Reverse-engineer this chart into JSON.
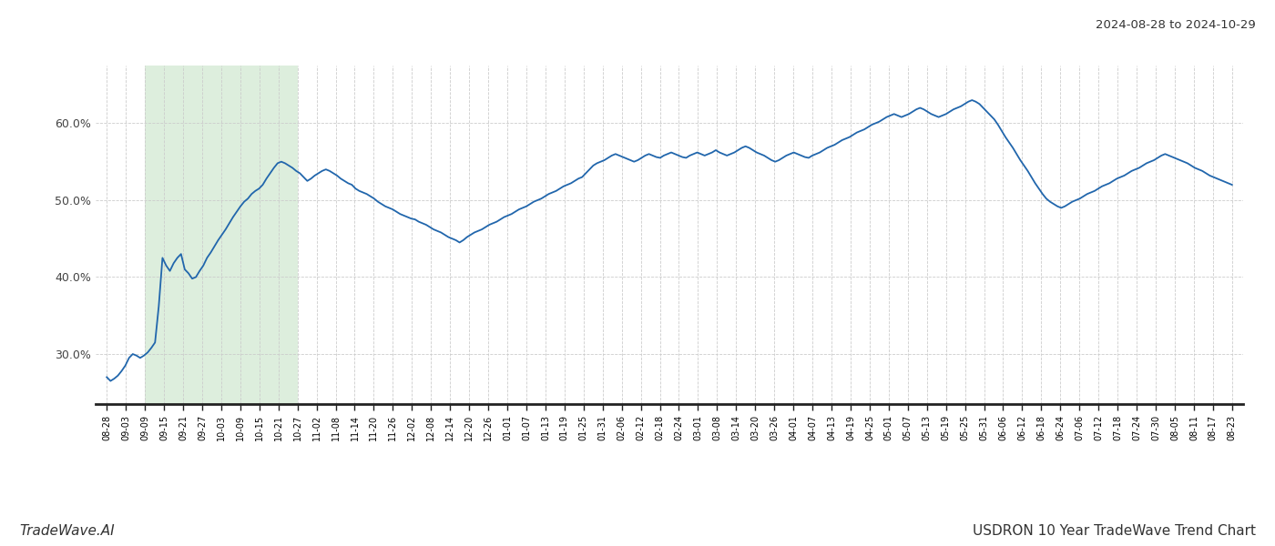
{
  "title_date_range": "2024-08-28 to 2024-10-29",
  "bottom_left_text": "TradeWave.AI",
  "bottom_right_text": "USDRON 10 Year TradeWave Trend Chart",
  "line_color": "#2166ac",
  "background_color": "#ffffff",
  "highlight_color": "#ddeedd",
  "y_ticks": [
    0.3,
    0.4,
    0.5,
    0.6
  ],
  "ylim_min": 0.235,
  "ylim_max": 0.675,
  "x_labels": [
    "08-28",
    "09-03",
    "09-09",
    "09-15",
    "09-21",
    "09-27",
    "10-03",
    "10-09",
    "10-15",
    "10-21",
    "10-27",
    "11-02",
    "11-08",
    "11-14",
    "11-20",
    "11-26",
    "12-02",
    "12-08",
    "12-14",
    "12-20",
    "12-26",
    "01-01",
    "01-07",
    "01-13",
    "01-19",
    "01-25",
    "01-31",
    "02-06",
    "02-12",
    "02-18",
    "02-24",
    "03-01",
    "03-08",
    "03-14",
    "03-20",
    "03-26",
    "04-01",
    "04-07",
    "04-13",
    "04-19",
    "04-25",
    "05-01",
    "05-07",
    "05-13",
    "05-19",
    "05-25",
    "05-31",
    "06-06",
    "06-12",
    "06-18",
    "06-24",
    "07-06",
    "07-12",
    "07-18",
    "07-24",
    "07-30",
    "08-05",
    "08-11",
    "08-17",
    "08-23"
  ],
  "highlight_label_start": "09-09",
  "highlight_label_end": "10-27",
  "values": [
    0.27,
    0.265,
    0.268,
    0.272,
    0.278,
    0.285,
    0.295,
    0.3,
    0.298,
    0.295,
    0.298,
    0.302,
    0.308,
    0.315,
    0.362,
    0.425,
    0.415,
    0.408,
    0.418,
    0.425,
    0.43,
    0.41,
    0.405,
    0.398,
    0.4,
    0.408,
    0.415,
    0.425,
    0.432,
    0.44,
    0.448,
    0.455,
    0.462,
    0.47,
    0.478,
    0.485,
    0.492,
    0.498,
    0.502,
    0.508,
    0.512,
    0.515,
    0.52,
    0.528,
    0.535,
    0.542,
    0.548,
    0.55,
    0.548,
    0.545,
    0.542,
    0.538,
    0.535,
    0.53,
    0.525,
    0.528,
    0.532,
    0.535,
    0.538,
    0.54,
    0.538,
    0.535,
    0.532,
    0.528,
    0.525,
    0.522,
    0.52,
    0.515,
    0.512,
    0.51,
    0.508,
    0.505,
    0.502,
    0.498,
    0.495,
    0.492,
    0.49,
    0.488,
    0.485,
    0.482,
    0.48,
    0.478,
    0.476,
    0.475,
    0.472,
    0.47,
    0.468,
    0.465,
    0.462,
    0.46,
    0.458,
    0.455,
    0.452,
    0.45,
    0.448,
    0.445,
    0.448,
    0.452,
    0.455,
    0.458,
    0.46,
    0.462,
    0.465,
    0.468,
    0.47,
    0.472,
    0.475,
    0.478,
    0.48,
    0.482,
    0.485,
    0.488,
    0.49,
    0.492,
    0.495,
    0.498,
    0.5,
    0.502,
    0.505,
    0.508,
    0.51,
    0.512,
    0.515,
    0.518,
    0.52,
    0.522,
    0.525,
    0.528,
    0.53,
    0.535,
    0.54,
    0.545,
    0.548,
    0.55,
    0.552,
    0.555,
    0.558,
    0.56,
    0.558,
    0.556,
    0.554,
    0.552,
    0.55,
    0.552,
    0.555,
    0.558,
    0.56,
    0.558,
    0.556,
    0.555,
    0.558,
    0.56,
    0.562,
    0.56,
    0.558,
    0.556,
    0.555,
    0.558,
    0.56,
    0.562,
    0.56,
    0.558,
    0.56,
    0.562,
    0.565,
    0.562,
    0.56,
    0.558,
    0.56,
    0.562,
    0.565,
    0.568,
    0.57,
    0.568,
    0.565,
    0.562,
    0.56,
    0.558,
    0.555,
    0.552,
    0.55,
    0.552,
    0.555,
    0.558,
    0.56,
    0.562,
    0.56,
    0.558,
    0.556,
    0.555,
    0.558,
    0.56,
    0.562,
    0.565,
    0.568,
    0.57,
    0.572,
    0.575,
    0.578,
    0.58,
    0.582,
    0.585,
    0.588,
    0.59,
    0.592,
    0.595,
    0.598,
    0.6,
    0.602,
    0.605,
    0.608,
    0.61,
    0.612,
    0.61,
    0.608,
    0.61,
    0.612,
    0.615,
    0.618,
    0.62,
    0.618,
    0.615,
    0.612,
    0.61,
    0.608,
    0.61,
    0.612,
    0.615,
    0.618,
    0.62,
    0.622,
    0.625,
    0.628,
    0.63,
    0.628,
    0.625,
    0.62,
    0.615,
    0.61,
    0.605,
    0.598,
    0.59,
    0.582,
    0.575,
    0.568,
    0.56,
    0.552,
    0.545,
    0.538,
    0.53,
    0.522,
    0.515,
    0.508,
    0.502,
    0.498,
    0.495,
    0.492,
    0.49,
    0.492,
    0.495,
    0.498,
    0.5,
    0.502,
    0.505,
    0.508,
    0.51,
    0.512,
    0.515,
    0.518,
    0.52,
    0.522,
    0.525,
    0.528,
    0.53,
    0.532,
    0.535,
    0.538,
    0.54,
    0.542,
    0.545,
    0.548,
    0.55,
    0.552,
    0.555,
    0.558,
    0.56,
    0.558,
    0.556,
    0.554,
    0.552,
    0.55,
    0.548,
    0.545,
    0.542,
    0.54,
    0.538,
    0.535,
    0.532,
    0.53,
    0.528,
    0.526,
    0.524,
    0.522,
    0.52
  ]
}
